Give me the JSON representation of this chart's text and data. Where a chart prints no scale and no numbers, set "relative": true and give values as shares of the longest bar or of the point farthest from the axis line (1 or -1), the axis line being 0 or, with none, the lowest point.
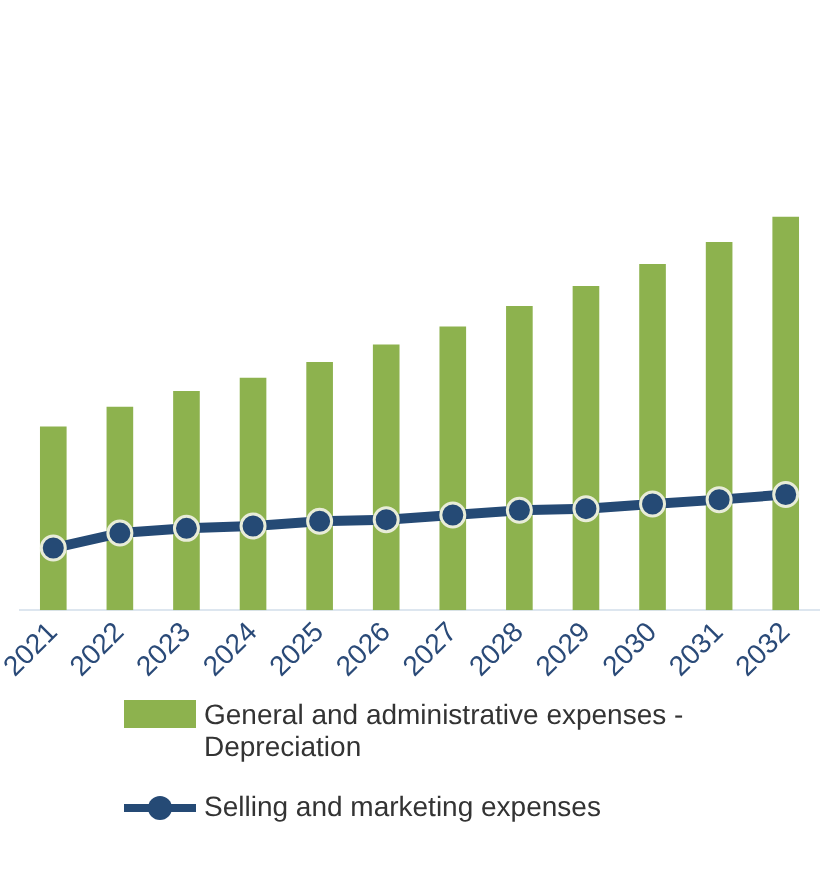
{
  "chart_data": {
    "type": "bar",
    "relative": true,
    "legend": "bottom",
    "categories": [
      "2021",
      "2022",
      "2023",
      "2024",
      "2025",
      "2026",
      "2027",
      "2028",
      "2029",
      "2030",
      "2031",
      "2032"
    ],
    "series": [
      {
        "name": "General and administrative expenses - Depreciation",
        "color": "#8db24e",
        "values": [
          0.467,
          0.517,
          0.557,
          0.591,
          0.631,
          0.675,
          0.721,
          0.773,
          0.824,
          0.88,
          0.936,
          1
        ]
      },
      {
        "name": "Selling and marketing expenses",
        "type": "line",
        "color": "#254a75",
        "marker": "circle",
        "values": [
          0.158,
          0.196,
          0.208,
          0.214,
          0.226,
          0.23,
          0.242,
          0.254,
          0.258,
          0.27,
          0.281,
          0.294
        ]
      }
    ]
  }
}
